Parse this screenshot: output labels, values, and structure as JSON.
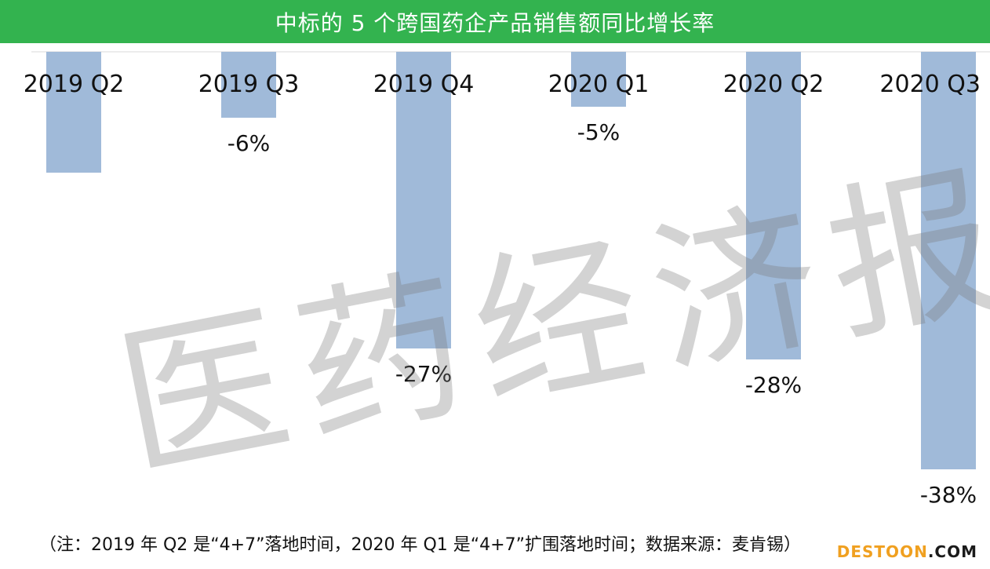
{
  "chart_data": {
    "type": "bar",
    "title": "中标的 5 个跨国药企产品销售额同比增长率",
    "categories": [
      "2019 Q2",
      "2019 Q3",
      "2019 Q4",
      "2020 Q1",
      "2020 Q2",
      "2020 Q3"
    ],
    "values": [
      -11,
      -6,
      -27,
      -5,
      -28,
      -38
    ],
    "value_labels": [
      "",
      "-6%",
      "-27%",
      "-5%",
      "-28%",
      "-38%"
    ],
    "ylim": [
      -40,
      0
    ],
    "unit": "%",
    "grid": false,
    "legend": "none",
    "bar_color": "#a0bad9"
  },
  "title_bar": {
    "color": "#33b34f"
  },
  "watermark": "医药经济报",
  "note": "（注：2019 年 Q2 是“4+7”落地时间，2020 年 Q1 是“4+7”扩围落地时间；数据来源：麦肯锡）",
  "brand": {
    "part1": "DESTOON",
    "part2": ".COM"
  }
}
